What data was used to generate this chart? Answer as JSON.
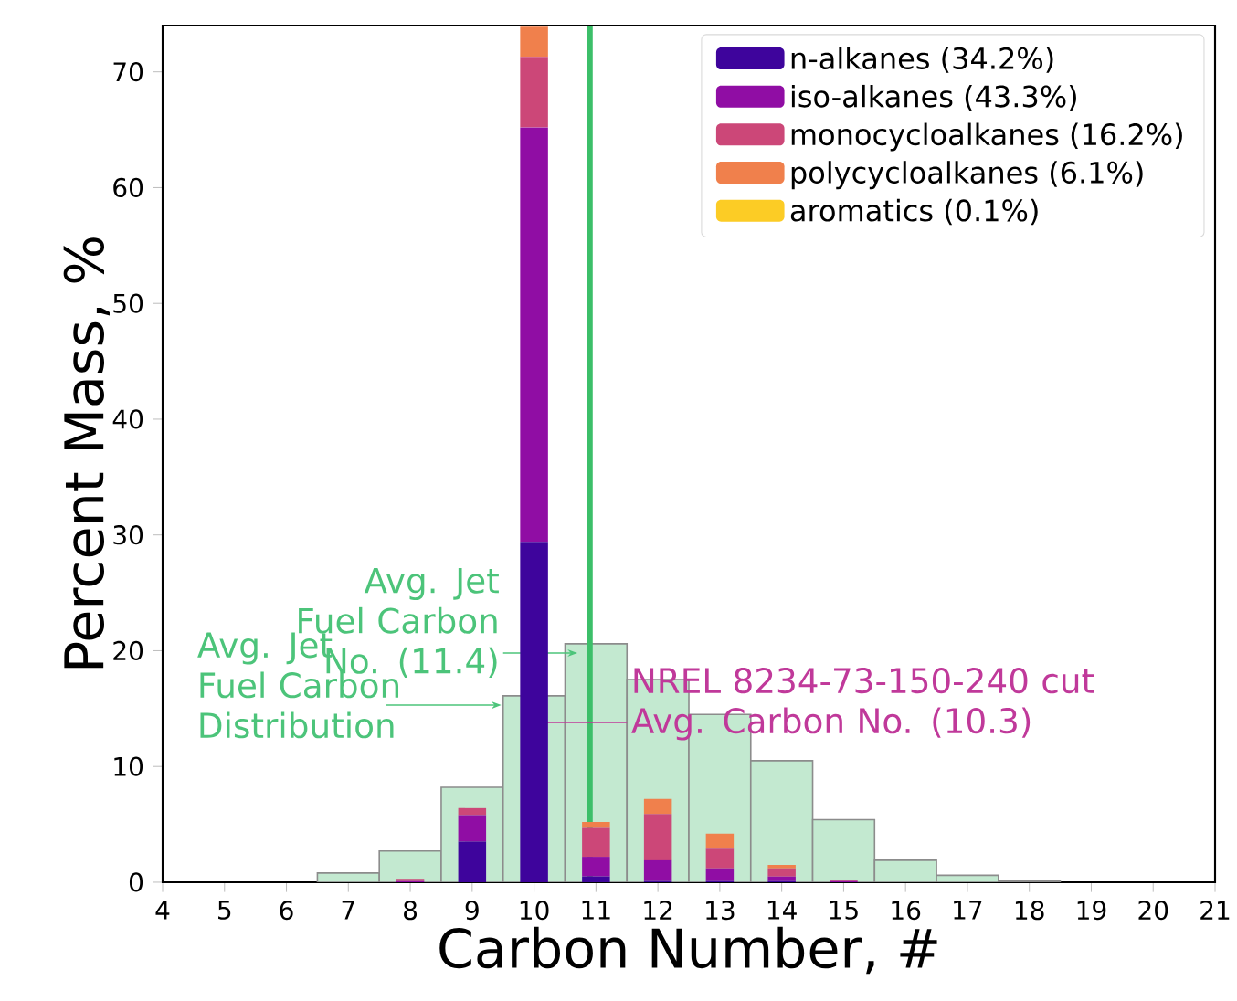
{
  "chart_data": [
    {
      "type": "histogram",
      "xlabel": "Carbon Number, #",
      "ylabel": "Percent Mass, %",
      "color": "#c3e9d0",
      "bins": [
        6.5,
        7.5,
        8.5,
        9.5,
        10.5,
        11.5,
        12.5,
        13.5,
        14.5,
        15.5,
        16.5,
        17.5,
        18.5
      ],
      "values": [
        0.8,
        2.7,
        8.2,
        16.1,
        20.6,
        17.5,
        14.5,
        10.5,
        5.4,
        1.9,
        0.6,
        0.1
      ],
      "ref_lines": [
        {
          "axis": "x",
          "value": 10.9,
          "color": "#3cbf69"
        }
      ],
      "xlim": [
        4,
        21
      ],
      "ylim": [
        0,
        74
      ],
      "xticks": [
        4,
        5,
        6,
        7,
        8,
        9,
        10,
        11,
        12,
        13,
        14,
        15,
        16,
        17,
        18,
        19,
        20,
        21
      ],
      "yticks": [
        0,
        10,
        20,
        30,
        40,
        50,
        60,
        70
      ]
    },
    {
      "type": "bar",
      "stacked": true,
      "x": [
        8,
        9,
        10,
        11,
        12,
        13,
        14,
        15
      ],
      "series": [
        {
          "name": "n-alkanes (34.2%)",
          "color": "#3e049c",
          "values": [
            0,
            3.5,
            29.4,
            0.5,
            0.1,
            0.1,
            0.1,
            0
          ]
        },
        {
          "name": "iso-alkanes (43.3%)",
          "color": "#900da4",
          "values": [
            0.1,
            2.3,
            35.8,
            1.7,
            1.8,
            1.1,
            0.4,
            0.1
          ]
        },
        {
          "name": "monocycloalkanes (16.2%)",
          "color": "#cc4778",
          "values": [
            0.2,
            0.6,
            6.1,
            2.5,
            4.0,
            1.7,
            0.7,
            0.1
          ]
        },
        {
          "name": "polycycloalkanes (6.1%)",
          "color": "#f0804c",
          "values": [
            0,
            0,
            2.6,
            0.5,
            1.3,
            1.3,
            0.3,
            0
          ]
        },
        {
          "name": "aromatics (0.1%)",
          "color": "#fccc25",
          "values": [
            0,
            0,
            0,
            0,
            0,
            0,
            0,
            0
          ]
        }
      ],
      "annotations": [
        "Avg. Jet Fuel Carbon No. (11.4)",
        "Avg. Jet Fuel Carbon Distribution",
        "NREL 8234-73-150-240 cut Avg. Carbon No. (10.3)"
      ],
      "xlim": [
        4,
        21
      ],
      "ylim": [
        0,
        74
      ],
      "tick_labels": false,
      "legend": "top right"
    }
  ]
}
